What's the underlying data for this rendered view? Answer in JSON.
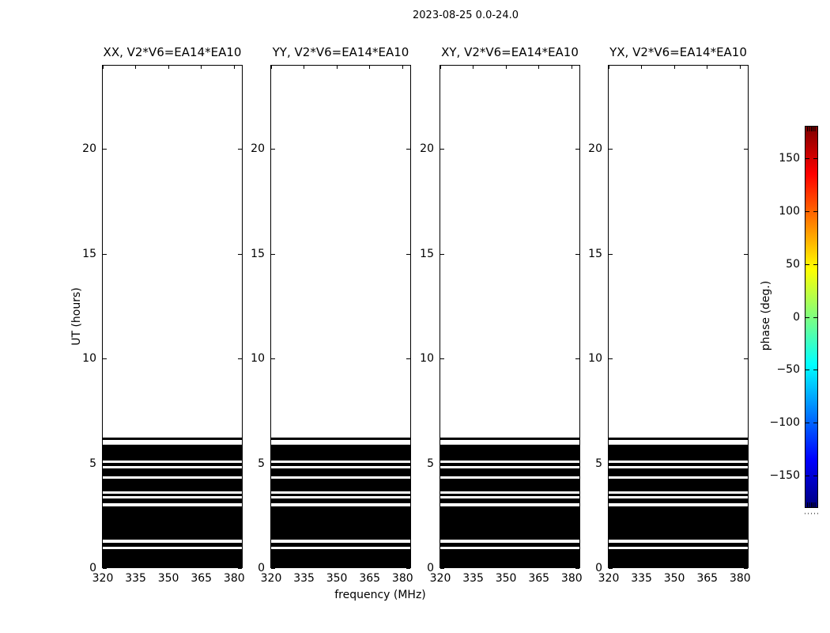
{
  "figure": {
    "title": "2023-08-25 0.0-24.0",
    "xlabel": "frequency (MHz)",
    "ylabel": "UT (hours)",
    "background_color": "#ffffff",
    "foreground_color": "#000000"
  },
  "chart_data": {
    "type": "heatmap",
    "title": "2023-08-25 0.0-24.0",
    "xlabel": "frequency (MHz)",
    "ylabel": "UT (hours)",
    "baseline": "V2*V6=EA14*EA10",
    "panels": [
      {
        "correlation": "XX",
        "title": "XX, V2*V6=EA14*EA10"
      },
      {
        "correlation": "YY",
        "title": "YY, V2*V6=EA14*EA10"
      },
      {
        "correlation": "XY",
        "title": "XY, V2*V6=EA14*EA10"
      },
      {
        "correlation": "YX",
        "title": "YX, V2*V6=EA14*EA10"
      }
    ],
    "x_range_mhz": [
      320,
      383.5
    ],
    "y_range_hours": [
      0,
      24
    ],
    "x_ticks": [
      320,
      335,
      350,
      365,
      380
    ],
    "x_tick_labels": [
      "320",
      "335",
      "350",
      "365",
      "380"
    ],
    "y_ticks": [
      0,
      5,
      10,
      15,
      20
    ],
    "y_tick_labels": [
      "0",
      "5",
      "10",
      "15",
      "20"
    ],
    "grid": false,
    "band_color": "#000000",
    "data_bands_hours": [
      [
        0.0,
        0.87
      ],
      [
        0.98,
        1.17
      ],
      [
        1.32,
        2.93
      ],
      [
        3.05,
        3.31
      ],
      [
        3.42,
        3.54
      ],
      [
        3.65,
        4.25
      ],
      [
        4.36,
        4.72
      ],
      [
        4.83,
        5.0
      ],
      [
        5.12,
        5.87
      ],
      [
        6.1,
        6.21
      ]
    ],
    "colorbar": {
      "label": "phase (deg.)",
      "colormap": "jet",
      "range_deg": [
        -180,
        180
      ],
      "ticks": [
        150,
        100,
        50,
        0,
        -50,
        -100,
        -150
      ],
      "tick_labels": [
        "150",
        "100",
        "50",
        "0",
        "−50",
        "−100",
        "−150"
      ],
      "gradient_stops": [
        {
          "pos": 0.0,
          "color": "#00007f"
        },
        {
          "pos": 0.125,
          "color": "#0000ff"
        },
        {
          "pos": 0.25,
          "color": "#007fff"
        },
        {
          "pos": 0.375,
          "color": "#00ffff"
        },
        {
          "pos": 0.5,
          "color": "#7fff7f"
        },
        {
          "pos": 0.625,
          "color": "#ffff00"
        },
        {
          "pos": 0.75,
          "color": "#ff7f00"
        },
        {
          "pos": 0.875,
          "color": "#ff0000"
        },
        {
          "pos": 1.0,
          "color": "#7f0000"
        }
      ]
    }
  }
}
